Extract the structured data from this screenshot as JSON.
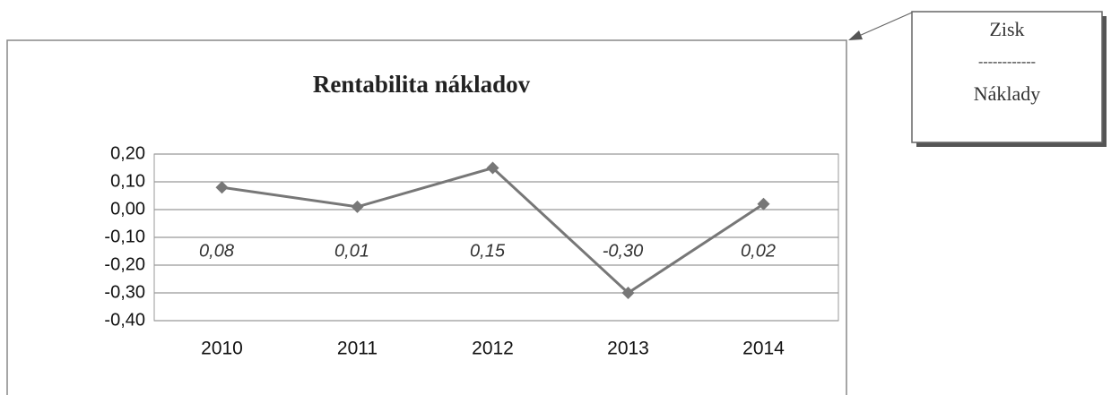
{
  "chart_data": {
    "type": "line",
    "title": "Rentabilita nákladov",
    "categories": [
      "2010",
      "2011",
      "2012",
      "2013",
      "2014"
    ],
    "series": [
      {
        "name": "Rentabilita nákladov",
        "color": "#777777",
        "values": [
          0.08,
          0.01,
          0.15,
          -0.3,
          0.02
        ],
        "value_labels": [
          "0,08",
          "0,01",
          "0,15",
          "-0,30",
          "0,02"
        ]
      }
    ],
    "ylim": [
      -0.4,
      0.2
    ],
    "yticks": [
      {
        "value": 0.2,
        "label": "0,20"
      },
      {
        "value": 0.1,
        "label": "0,10"
      },
      {
        "value": 0.0,
        "label": "0,00"
      },
      {
        "value": -0.1,
        "label": "-0,10"
      },
      {
        "value": -0.2,
        "label": "-0,20"
      },
      {
        "value": -0.3,
        "label": "-0,30"
      },
      {
        "value": -0.4,
        "label": "-0,40"
      }
    ],
    "grid": true
  },
  "formula": {
    "numerator": "Zisk",
    "bar": "------------",
    "denominator": "Náklady"
  }
}
